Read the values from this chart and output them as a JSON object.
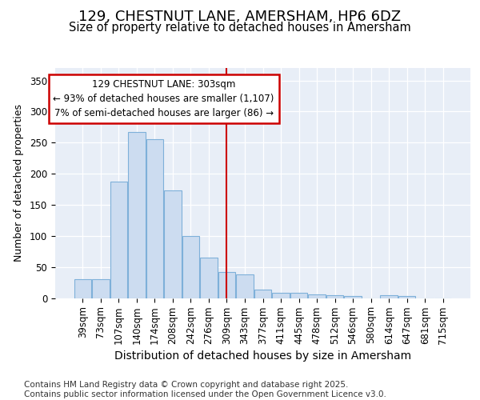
{
  "title": "129, CHESTNUT LANE, AMERSHAM, HP6 6DZ",
  "subtitle": "Size of property relative to detached houses in Amersham",
  "xlabel": "Distribution of detached houses by size in Amersham",
  "ylabel": "Number of detached properties",
  "categories": [
    "39sqm",
    "73sqm",
    "107sqm",
    "140sqm",
    "174sqm",
    "208sqm",
    "242sqm",
    "276sqm",
    "309sqm",
    "343sqm",
    "377sqm",
    "411sqm",
    "445sqm",
    "478sqm",
    "512sqm",
    "546sqm",
    "580sqm",
    "614sqm",
    "647sqm",
    "681sqm",
    "715sqm"
  ],
  "values": [
    30,
    30,
    187,
    267,
    255,
    173,
    100,
    65,
    42,
    38,
    13,
    9,
    8,
    6,
    5,
    3,
    0,
    4,
    3,
    0,
    0
  ],
  "bar_color": "#ccdcf0",
  "bar_edge_color": "#7eb0d9",
  "background_color": "#e8eef7",
  "vline_index": 8,
  "vline_color": "#cc0000",
  "annotation_text": "129 CHESTNUT LANE: 303sqm\n← 93% of detached houses are smaller (1,107)\n7% of semi-detached houses are larger (86) →",
  "annotation_box_color": "#ffffff",
  "annotation_box_edge": "#cc0000",
  "ylim": [
    0,
    370
  ],
  "yticks": [
    0,
    50,
    100,
    150,
    200,
    250,
    300,
    350
  ],
  "footer": "Contains HM Land Registry data © Crown copyright and database right 2025.\nContains public sector information licensed under the Open Government Licence v3.0.",
  "title_fontsize": 13,
  "subtitle_fontsize": 10.5,
  "xlabel_fontsize": 10,
  "ylabel_fontsize": 9,
  "tick_fontsize": 8.5,
  "footer_fontsize": 7.5
}
